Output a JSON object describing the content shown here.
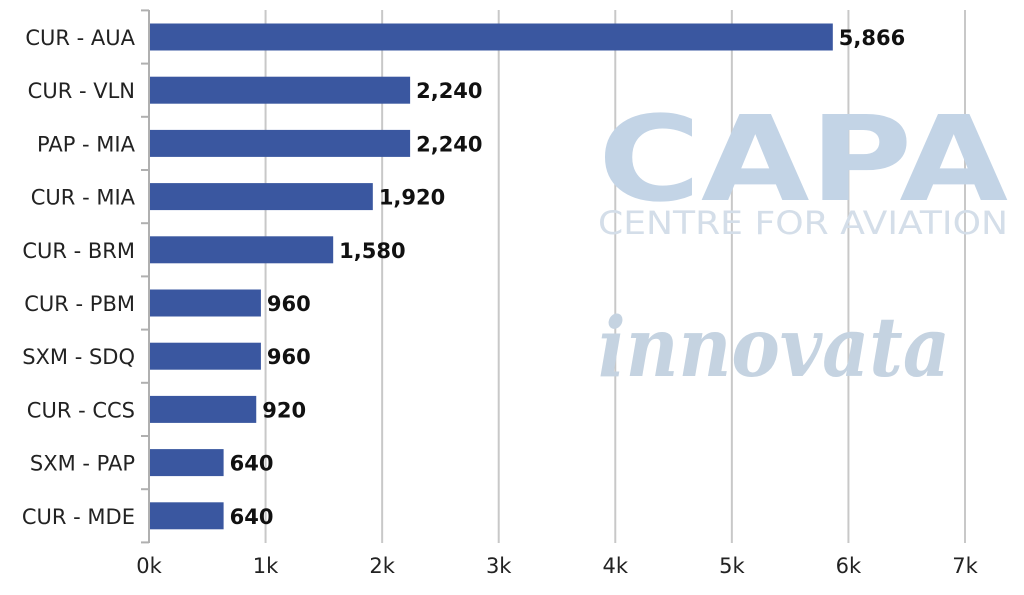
{
  "chart_data": {
    "type": "bar",
    "orientation": "horizontal",
    "categories": [
      "CUR - AUA",
      "CUR - VLN",
      "PAP - MIA",
      "CUR - MIA",
      "CUR - BRM",
      "CUR - PBM",
      "SXM - SDQ",
      "CUR - CCS",
      "SXM - PAP",
      "CUR - MDE"
    ],
    "values": [
      5866,
      2240,
      2240,
      1920,
      1580,
      960,
      960,
      920,
      640,
      640
    ],
    "value_labels": [
      "5,866",
      "2,240",
      "2,240",
      "1,920",
      "1,580",
      "960",
      "960",
      "920",
      "640",
      "640"
    ],
    "xlim": [
      0,
      7000
    ],
    "x_ticks": [
      0,
      1000,
      2000,
      3000,
      4000,
      5000,
      6000,
      7000
    ],
    "x_tick_labels": [
      "0k",
      "1k",
      "2k",
      "3k",
      "4k",
      "5k",
      "6k",
      "7k"
    ],
    "title": "",
    "xlabel": "",
    "ylabel": "",
    "grid": true,
    "bar_color": "#3a57a0",
    "grid_color": "#c8c8c8"
  },
  "watermarks": {
    "capa_logo": "CAPA",
    "capa_tagline": "CENTRE FOR AVIATION",
    "innovata_logo": "innovata"
  }
}
